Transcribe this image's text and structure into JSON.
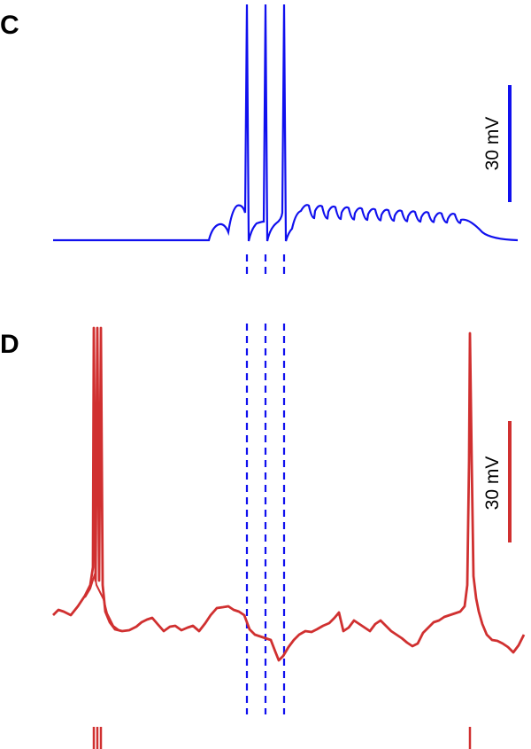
{
  "panels": [
    {
      "label": "C",
      "scale_bar": {
        "label": "30 mV"
      }
    },
    {
      "label": "D",
      "scale_bar": {
        "label": "30 mV"
      }
    }
  ]
}
